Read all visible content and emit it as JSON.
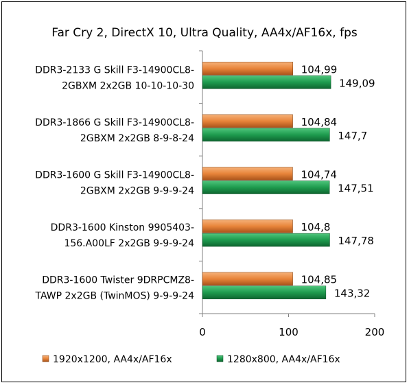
{
  "chart_data": {
    "type": "bar",
    "orientation": "horizontal",
    "title": "Far Cry 2, DirectX 10, Ultra Quality, AA4x/AF16x, fps",
    "categories": [
      [
        "DDR3-2133 G Skill F3-14900CL8-",
        "2GBXM 2x2GB 10-10-10-30"
      ],
      [
        "DDR3-1866 G Skill F3-14900CL8-",
        "2GBXM 2x2GB 8-9-8-24"
      ],
      [
        "DDR3-1600 G Skill F3-14900CL8-",
        "2GBXM 2x2GB 9-9-9-24"
      ],
      [
        "DDR3-1600 Kinston 9905403-",
        "156.A00LF 2x2GB 9-9-9-24"
      ],
      [
        "DDR3-1600 Twister 9DRPCMZ8-",
        "TAWP 2x2GB (TwinMOS) 9-9-9-24"
      ]
    ],
    "series": [
      {
        "name": "1920x1200, AA4x/AF16x",
        "color": "#E8853A",
        "values": [
          104.99,
          104.84,
          104.74,
          104.8,
          104.85
        ],
        "value_labels": [
          "104,99",
          "104,84",
          "104,74",
          "104,8",
          "104,85"
        ]
      },
      {
        "name": "1280x800, AA4x/AF16x",
        "color": "#1E9B4E",
        "values": [
          149.09,
          147.7,
          147.51,
          147.78,
          143.32
        ],
        "value_labels": [
          "149,09",
          "147,7",
          "147,51",
          "147,78",
          "143,32"
        ]
      }
    ],
    "xlim": [
      0,
      200
    ],
    "x_ticks": [
      0,
      100,
      200
    ],
    "x_tick_labels": [
      "0",
      "100",
      "200"
    ],
    "grid": false,
    "legend_position": "bottom"
  }
}
